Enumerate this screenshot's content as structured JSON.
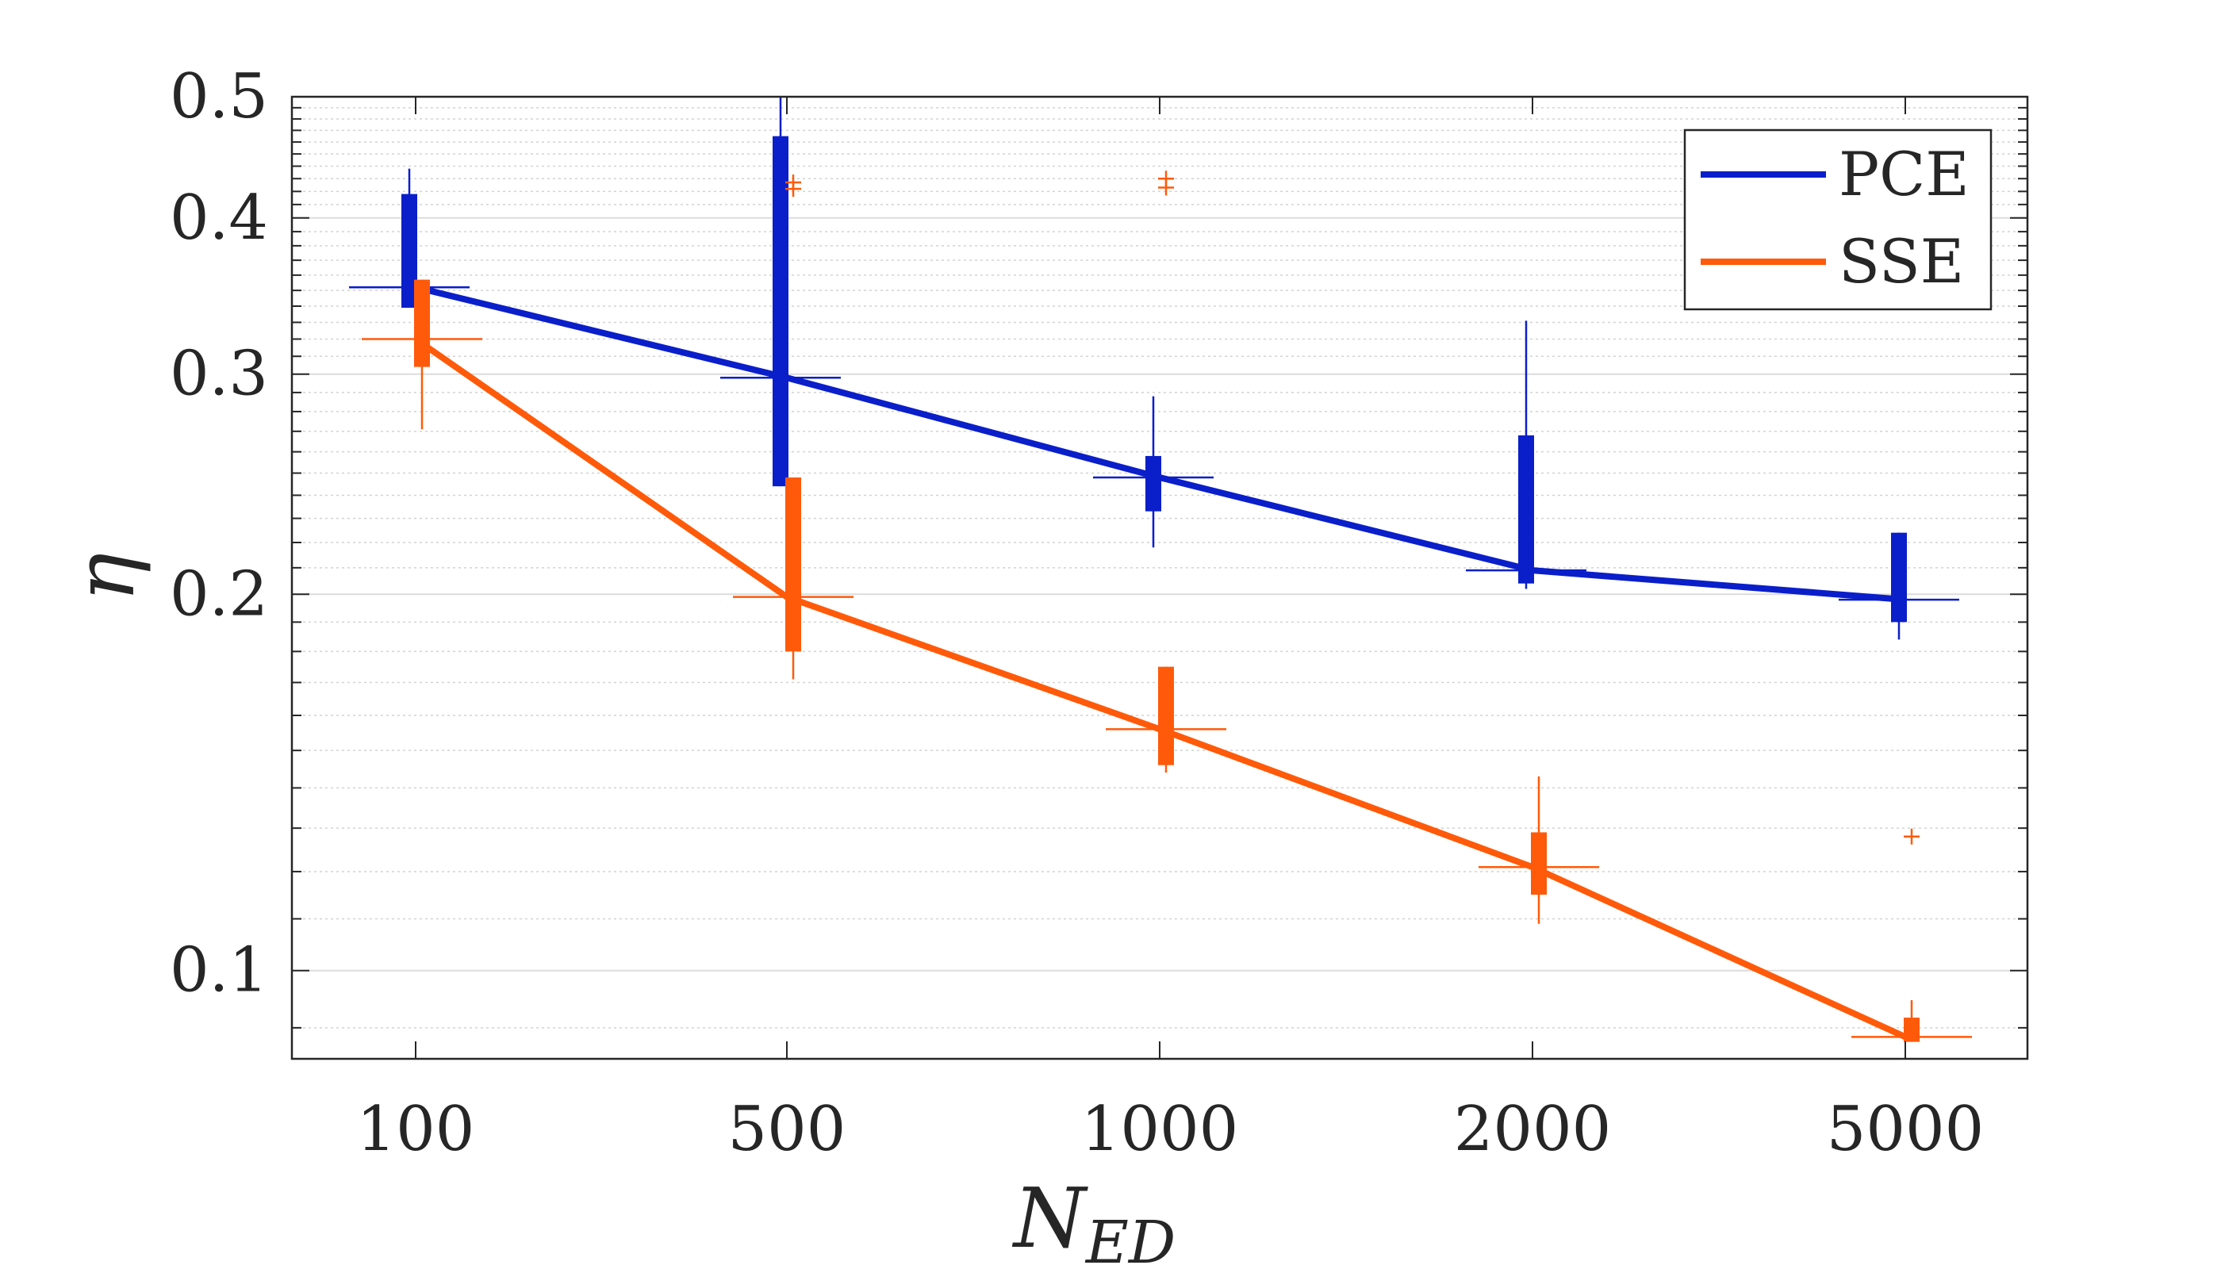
{
  "chart_data": {
    "type": "box-line",
    "title": "",
    "xlabel": "N",
    "xlabel_subscript": "ED",
    "ylabel": "η",
    "yscale": "log",
    "ylim": [
      0.085,
      0.5
    ],
    "yticks": [
      0.1,
      0.2,
      0.3,
      0.4,
      0.5
    ],
    "ytick_labels": [
      "0.1",
      "0.2",
      "0.3",
      "0.4",
      "0.5"
    ],
    "categories": [
      "100",
      "500",
      "1000",
      "2000",
      "5000"
    ],
    "grid": true,
    "legend_position": "top-right",
    "series": [
      {
        "name": "PCE",
        "color": "#0a1fc9",
        "values": [
          0.352,
          0.298,
          0.248,
          0.209,
          0.198
        ],
        "boxes": [
          {
            "q1": 0.339,
            "q3": 0.418,
            "wlo": 0.339,
            "whi": 0.438,
            "outliers": []
          },
          {
            "q1": 0.244,
            "q3": 0.465,
            "wlo": 0.244,
            "whi": 0.5,
            "outliers": []
          },
          {
            "q1": 0.233,
            "q3": 0.258,
            "wlo": 0.218,
            "whi": 0.288,
            "outliers": []
          },
          {
            "q1": 0.204,
            "q3": 0.268,
            "wlo": 0.202,
            "whi": 0.331,
            "outliers": []
          },
          {
            "q1": 0.19,
            "q3": 0.224,
            "wlo": 0.184,
            "whi": 0.224,
            "outliers": []
          }
        ]
      },
      {
        "name": "SSE",
        "color": "#ff5a0a",
        "values": [
          0.32,
          0.199,
          0.156,
          0.121,
          0.0885
        ],
        "boxes": [
          {
            "q1": 0.304,
            "q3": 0.357,
            "wlo": 0.271,
            "whi": 0.357,
            "outliers": []
          },
          {
            "q1": 0.18,
            "q3": 0.248,
            "wlo": 0.171,
            "whi": 0.248,
            "outliers": [
              0.422,
              0.427
            ]
          },
          {
            "q1": 0.146,
            "q3": 0.175,
            "wlo": 0.144,
            "whi": 0.175,
            "outliers": [
              0.423,
              0.43
            ]
          },
          {
            "q1": 0.115,
            "q3": 0.129,
            "wlo": 0.109,
            "whi": 0.143,
            "outliers": []
          },
          {
            "q1": 0.0877,
            "q3": 0.0917,
            "wlo": 0.0877,
            "whi": 0.0947,
            "outliers": [
              0.128
            ]
          }
        ]
      }
    ]
  }
}
